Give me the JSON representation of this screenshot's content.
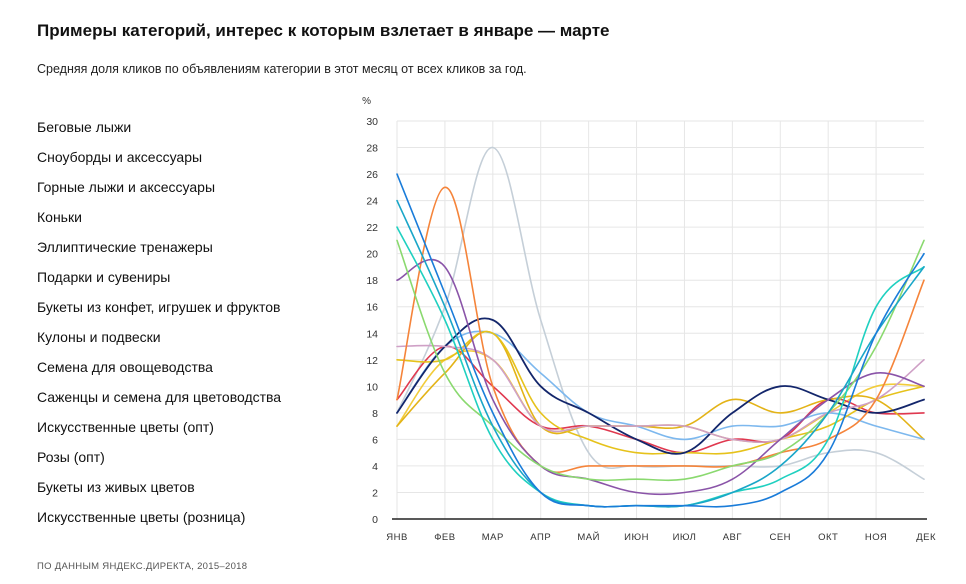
{
  "title": "Примеры категорий, интерес к которым взлетает в январе — марте",
  "subtitle": "Средняя доля кликов по объявлениям категории в этот месяц от всех кликов за год.",
  "footer": "ПО ДАННЫМ ЯНДЕКС.ДИРЕКТА, 2015–2018",
  "chart_data": {
    "type": "line",
    "unit": "%",
    "x": [
      "ЯНВ",
      "ФЕВ",
      "МАР",
      "АПР",
      "МАЙ",
      "ИЮН",
      "ИЮЛ",
      "АВГ",
      "СЕН",
      "ОКТ",
      "НОЯ",
      "ДЕК"
    ],
    "ylim": [
      0,
      30
    ],
    "yticks": [
      0,
      2,
      4,
      6,
      8,
      10,
      12,
      14,
      16,
      18,
      20,
      22,
      24,
      26,
      28,
      30
    ],
    "grid": true,
    "legend": "left",
    "series": [
      {
        "name": "Беговые лыжи",
        "values": [
          26,
          17,
          8,
          2,
          1,
          1,
          1,
          1,
          2,
          5,
          14,
          20
        ]
      },
      {
        "name": "Сноуборды и аксессуары",
        "values": [
          24,
          16,
          7,
          2,
          1,
          1,
          1,
          2,
          4,
          8,
          14,
          19
        ]
      },
      {
        "name": "Горные лыжи и аксессуары",
        "values": [
          22,
          15,
          6,
          2,
          1,
          1,
          1,
          2,
          3,
          6,
          16,
          19
        ]
      },
      {
        "name": "Коньки",
        "values": [
          21,
          11,
          7,
          4,
          3,
          3,
          3,
          4,
          5,
          8,
          13,
          21
        ]
      },
      {
        "name": "Эллиптические тренажеры",
        "values": [
          18,
          19,
          9,
          4,
          3,
          2,
          2,
          3,
          6,
          9,
          11,
          10
        ]
      },
      {
        "name": "Подарки и сувениры",
        "values": [
          9,
          25,
          10,
          4,
          4,
          4,
          4,
          4,
          5,
          6,
          9,
          18
        ]
      },
      {
        "name": "Букеты из конфет, игрушек и фруктов",
        "values": [
          13,
          13,
          12,
          7,
          7,
          7,
          7,
          6,
          6,
          8,
          9,
          12
        ]
      },
      {
        "name": "Кулоны и подвески",
        "values": [
          8,
          13,
          15,
          10,
          8,
          6,
          5,
          8,
          10,
          9,
          8,
          9
        ]
      },
      {
        "name": "Семена для овощеводства",
        "values": [
          12,
          12,
          14,
          8,
          6,
          5,
          5,
          5,
          6,
          7,
          9,
          10
        ]
      },
      {
        "name": "Саженцы и семена для цветоводства",
        "values": [
          8,
          13,
          14,
          11,
          8,
          7,
          6,
          7,
          7,
          8,
          7,
          6
        ]
      },
      {
        "name": "Искусственные цветы (опт)",
        "values": [
          7,
          11,
          14,
          7,
          7,
          7,
          7,
          9,
          8,
          9,
          9,
          6
        ]
      },
      {
        "name": "Розы (опт)",
        "values": [
          9,
          13,
          10,
          7,
          7,
          6,
          5,
          6,
          6,
          9,
          8,
          8
        ]
      },
      {
        "name": "Букеты из живых цветов",
        "values": [
          8,
          16,
          28,
          15,
          5,
          4,
          4,
          4,
          4,
          5,
          5,
          3
        ]
      },
      {
        "name": "Искусственные цветы (розница)",
        "values": [
          7,
          12,
          12,
          7,
          7,
          7,
          7,
          6,
          6,
          8,
          10,
          10
        ]
      }
    ],
    "colors": [
      "#1a7cd9",
      "#1aa6c8",
      "#1fd0c0",
      "#8ad96f",
      "#8a54a8",
      "#f5843a",
      "#cfa0c6",
      "#13266b",
      "#e6c21b",
      "#7db8ee",
      "#e3b317",
      "#e0384f",
      "#c5cfd8",
      "#f2cc3a"
    ]
  }
}
